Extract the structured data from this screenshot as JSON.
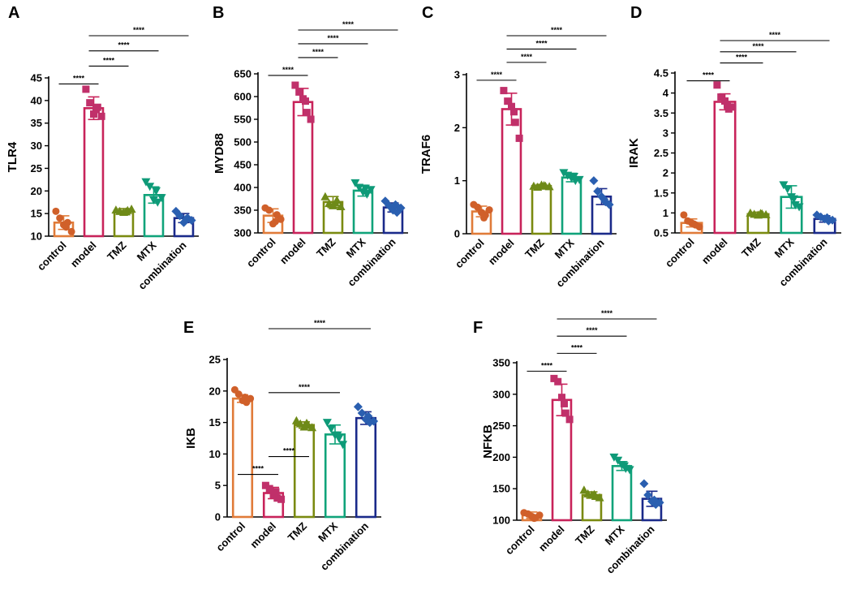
{
  "chart_data": [
    {
      "panel": "A",
      "type": "bar",
      "ylabel": "TLR4",
      "ylim": [
        10,
        45
      ],
      "yticks": [
        10,
        15,
        20,
        25,
        30,
        35,
        40,
        45
      ],
      "categories": [
        "control",
        "model",
        "TMZ",
        "MTX",
        "combination"
      ],
      "means": [
        13.0,
        38.3,
        15.6,
        19.1,
        14.0
      ],
      "errors": [
        1.5,
        2.5,
        0.5,
        1.8,
        1.0
      ],
      "points": [
        [
          15.5,
          14.0,
          12.5,
          13.0,
          11.0,
          12.0
        ],
        [
          42.5,
          39.5,
          37.0,
          38.5,
          36.5,
          38.0
        ],
        [
          15.8,
          15.5,
          15.3,
          15.7,
          16.0,
          15.4
        ],
        [
          22.0,
          21.0,
          18.0,
          17.5,
          18.5,
          20.0
        ],
        [
          15.5,
          14.5,
          13.0,
          14.0,
          13.5,
          13.8
        ]
      ],
      "markers": [
        "circle",
        "square",
        "triangle",
        "tri-down",
        "diamond"
      ],
      "significance": [
        {
          "from": 0,
          "to": 1,
          "label": "****"
        },
        {
          "from": 1,
          "to": 2,
          "label": "****"
        },
        {
          "from": 1,
          "to": 3,
          "label": "****"
        },
        {
          "from": 1,
          "to": 4,
          "label": "****"
        }
      ]
    },
    {
      "panel": "B",
      "type": "bar",
      "ylabel": "MYD88",
      "ylim": [
        300,
        650
      ],
      "yticks": [
        300,
        350,
        400,
        450,
        500,
        550,
        600,
        650
      ],
      "categories": [
        "control",
        "model",
        "TMZ",
        "MTX",
        "combination"
      ],
      "means": [
        338,
        588,
        368,
        393,
        356
      ],
      "errors": [
        15,
        30,
        12,
        12,
        10
      ],
      "points": [
        [
          355,
          350,
          320,
          340,
          330,
          325
        ],
        [
          625,
          610,
          595,
          565,
          550,
          590
        ],
        [
          380,
          365,
          360,
          372,
          358,
          366
        ],
        [
          410,
          400,
          390,
          385,
          395,
          398
        ],
        [
          370,
          360,
          350,
          345,
          355,
          362
        ]
      ],
      "markers": [
        "circle",
        "square",
        "triangle",
        "tri-down",
        "diamond"
      ],
      "significance": [
        {
          "from": 0,
          "to": 1,
          "label": "****"
        },
        {
          "from": 1,
          "to": 2,
          "label": "****"
        },
        {
          "from": 1,
          "to": 3,
          "label": "****"
        },
        {
          "from": 1,
          "to": 4,
          "label": "****"
        }
      ]
    },
    {
      "panel": "C",
      "type": "bar",
      "ylabel": "TRAF6",
      "ylim": [
        0,
        3
      ],
      "yticks": [
        0,
        1,
        2,
        3
      ],
      "categories": [
        "control",
        "model",
        "TMZ",
        "MTX",
        "combination"
      ],
      "means": [
        0.42,
        2.35,
        0.9,
        1.06,
        0.7
      ],
      "errors": [
        0.1,
        0.3,
        0.03,
        0.08,
        0.15
      ],
      "points": [
        [
          0.55,
          0.5,
          0.4,
          0.35,
          0.45,
          0.3
        ],
        [
          2.7,
          2.5,
          2.4,
          2.1,
          1.8,
          2.3
        ],
        [
          0.9,
          0.88,
          0.92,
          0.9,
          0.89,
          0.91
        ],
        [
          1.15,
          1.1,
          1.05,
          1.0,
          1.02,
          1.08
        ],
        [
          1.0,
          0.8,
          0.7,
          0.6,
          0.55,
          0.65
        ]
      ],
      "markers": [
        "circle",
        "square",
        "triangle",
        "tri-down",
        "diamond"
      ],
      "significance": [
        {
          "from": 0,
          "to": 1,
          "label": "****"
        },
        {
          "from": 1,
          "to": 2,
          "label": "****"
        },
        {
          "from": 1,
          "to": 3,
          "label": "****"
        },
        {
          "from": 1,
          "to": 4,
          "label": "****"
        }
      ]
    },
    {
      "panel": "D",
      "type": "bar",
      "ylabel": "IRAK",
      "ylim": [
        0.5,
        4.5
      ],
      "yticks": [
        0.5,
        1.0,
        1.5,
        2.0,
        2.5,
        3.0,
        3.5,
        4.0,
        4.5
      ],
      "categories": [
        "control",
        "model",
        "TMZ",
        "MTX",
        "combination"
      ],
      "means": [
        0.75,
        3.78,
        0.97,
        1.4,
        0.85
      ],
      "errors": [
        0.1,
        0.2,
        0.05,
        0.28,
        0.08
      ],
      "points": [
        [
          0.95,
          0.8,
          0.75,
          0.7,
          0.65,
          0.72
        ],
        [
          4.2,
          3.9,
          3.8,
          3.6,
          3.65,
          3.7
        ],
        [
          1.0,
          0.97,
          0.95,
          0.98,
          0.96,
          0.99
        ],
        [
          1.7,
          1.6,
          1.4,
          1.2,
          1.15,
          1.35
        ],
        [
          0.95,
          0.9,
          0.85,
          0.8,
          0.82,
          0.88
        ]
      ],
      "markers": [
        "circle",
        "square",
        "triangle",
        "tri-down",
        "diamond"
      ],
      "significance": [
        {
          "from": 0,
          "to": 1,
          "label": "****"
        },
        {
          "from": 1,
          "to": 2,
          "label": "****"
        },
        {
          "from": 1,
          "to": 3,
          "label": "****"
        },
        {
          "from": 1,
          "to": 4,
          "label": "****"
        }
      ]
    },
    {
      "panel": "E",
      "type": "bar",
      "ylabel": "IKB",
      "ylim": [
        0,
        25
      ],
      "yticks": [
        0,
        5,
        10,
        15,
        20,
        25
      ],
      "categories": [
        "control",
        "model",
        "TMZ",
        "MTX",
        "combination"
      ],
      "means": [
        18.8,
        3.8,
        14.6,
        13.1,
        15.7
      ],
      "errors": [
        0.6,
        0.9,
        0.5,
        1.5,
        1.0
      ],
      "points": [
        [
          20.2,
          19.5,
          18.5,
          18.2,
          18.8,
          19.0
        ],
        [
          5.0,
          4.5,
          3.5,
          3.0,
          2.8,
          4.0
        ],
        [
          15.3,
          14.8,
          14.3,
          14.6,
          14.2,
          14.9
        ],
        [
          15.0,
          14.0,
          13.0,
          12.5,
          11.5,
          13.0
        ],
        [
          17.5,
          16.5,
          15.5,
          15.0,
          15.2,
          16.0
        ]
      ],
      "markers": [
        "circle",
        "square",
        "triangle",
        "tri-down",
        "diamond"
      ],
      "significance": [
        {
          "from": 0,
          "to": 1,
          "label": "****"
        },
        {
          "from": 1,
          "to": 2,
          "label": "****"
        },
        {
          "from": 1,
          "to": 3,
          "label": "****"
        },
        {
          "from": 1,
          "to": 4,
          "label": "****"
        }
      ]
    },
    {
      "panel": "F",
      "type": "bar",
      "ylabel": "NFKB",
      "ylim": [
        100,
        350
      ],
      "yticks": [
        100,
        150,
        200,
        250,
        300,
        350
      ],
      "categories": [
        "control",
        "model",
        "TMZ",
        "MTX",
        "combination"
      ],
      "means": [
        108,
        291,
        140,
        186,
        134
      ],
      "errors": [
        5,
        25,
        5,
        7,
        12
      ],
      "points": [
        [
          112,
          110,
          106,
          104,
          108,
          103
        ],
        [
          325,
          320,
          295,
          270,
          260,
          285
        ],
        [
          148,
          142,
          140,
          138,
          136,
          141
        ],
        [
          200,
          195,
          188,
          182,
          180,
          186
        ],
        [
          158,
          140,
          130,
          125,
          128,
          132
        ]
      ],
      "markers": [
        "circle",
        "square",
        "triangle",
        "tri-down",
        "diamond"
      ],
      "significance": [
        {
          "from": 0,
          "to": 1,
          "label": "****"
        },
        {
          "from": 1,
          "to": 2,
          "label": "****"
        },
        {
          "from": 1,
          "to": 3,
          "label": "****"
        },
        {
          "from": 1,
          "to": 4,
          "label": "****"
        }
      ]
    }
  ],
  "colors": {
    "control": "#E07B39",
    "model": "#C8235A",
    "TMZ": "#7A8A10",
    "MTX": "#10A37A",
    "combination": "#1A2A8A",
    "point_control": "#D0602A",
    "point_model": "#C0306A",
    "point_TMZ": "#6E8A18",
    "point_MTX": "#0E9A78",
    "point_combination": "#2A5FB0"
  }
}
